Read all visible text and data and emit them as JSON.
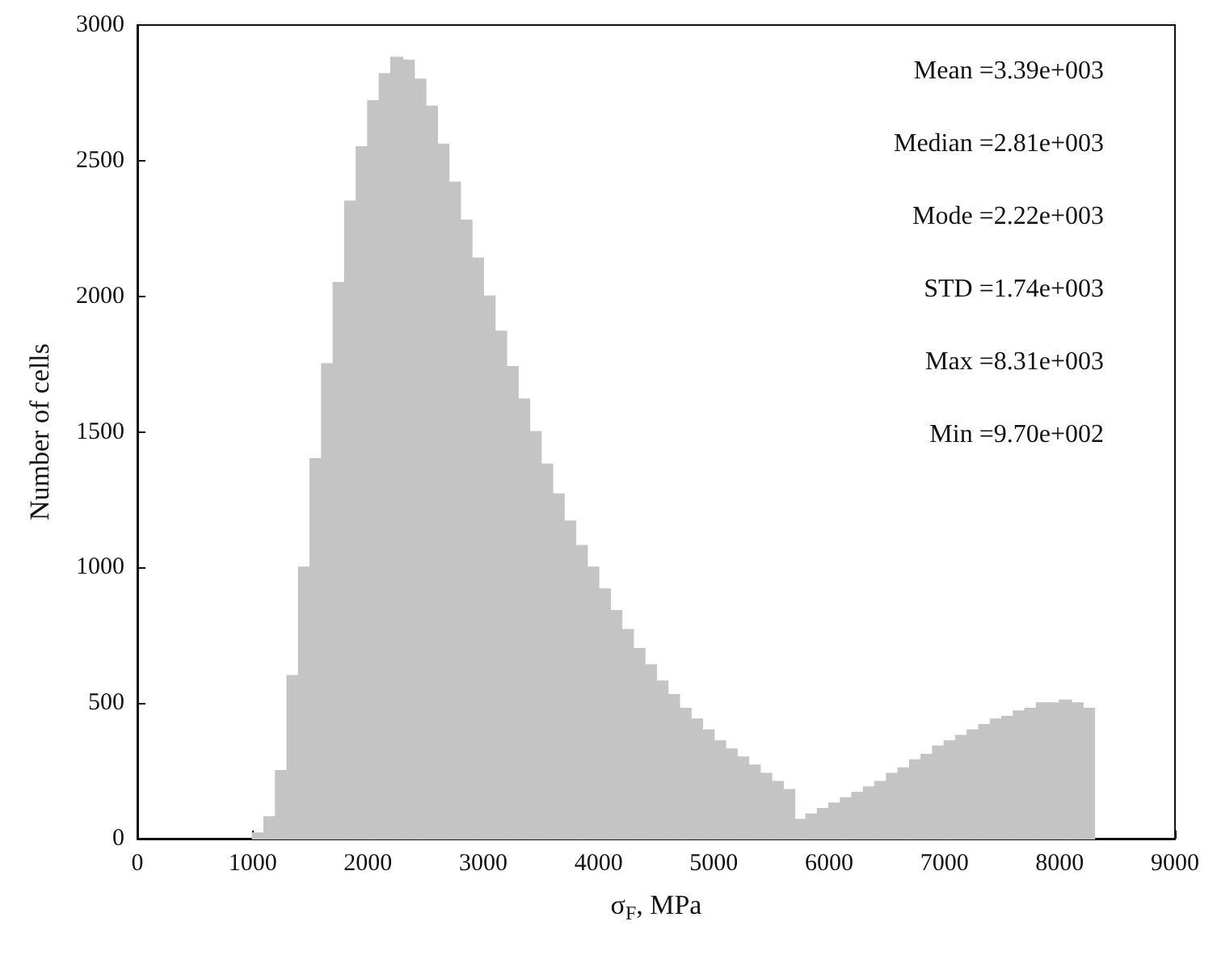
{
  "chart_data": {
    "type": "histogram",
    "xlabel": "σ$_{F}$, MPa",
    "ylabel": "Number of cells",
    "color": "#c4c4c4",
    "bins": [
      1000,
      1100,
      1200,
      1300,
      1400,
      1500,
      1600,
      1700,
      1800,
      1900,
      2000,
      2100,
      2200,
      2300,
      2400,
      2500,
      2600,
      2700,
      2800,
      2900,
      3000,
      3100,
      3200,
      3300,
      3400,
      3500,
      3600,
      3700,
      3800,
      3900,
      4000,
      4100,
      4200,
      4300,
      4400,
      4500,
      4600,
      4700,
      4800,
      4900,
      5000,
      5100,
      5200,
      5300,
      5400,
      5500,
      5600,
      5700,
      5800,
      5900,
      6000,
      6100,
      6200,
      6300,
      6400,
      6500,
      6600,
      6700,
      6800,
      6900,
      7000,
      7100,
      7200,
      7300,
      7400,
      7500,
      7600,
      7700,
      7800,
      7900,
      8000,
      8100,
      8200,
      8300
    ],
    "values": [
      20,
      80,
      250,
      600,
      1000,
      1400,
      1750,
      2050,
      2350,
      2550,
      2720,
      2820,
      2880,
      2870,
      2800,
      2700,
      2560,
      2420,
      2280,
      2140,
      2000,
      1870,
      1740,
      1620,
      1500,
      1380,
      1270,
      1170,
      1080,
      1000,
      920,
      840,
      770,
      700,
      640,
      580,
      530,
      480,
      440,
      400,
      360,
      330,
      300,
      270,
      240,
      210,
      180,
      70,
      90,
      110,
      130,
      150,
      170,
      190,
      210,
      240,
      260,
      290,
      310,
      340,
      360,
      380,
      400,
      420,
      440,
      450,
      470,
      480,
      500,
      500,
      510,
      500,
      480
    ],
    "xlim": [
      0,
      9000
    ],
    "xticks": [
      0,
      1000,
      2000,
      3000,
      4000,
      5000,
      6000,
      7000,
      8000,
      9000
    ],
    "ylim": [
      0,
      3000
    ],
    "yticks": [
      0,
      500,
      1000,
      1500,
      2000,
      2500,
      3000
    ],
    "grid": false,
    "annotations": [
      "Mean =3.39e+003",
      "Median =2.81e+003",
      "Mode =2.22e+003",
      "STD =1.74e+003",
      "Max =8.31e+003",
      "Min =9.70e+002"
    ]
  }
}
